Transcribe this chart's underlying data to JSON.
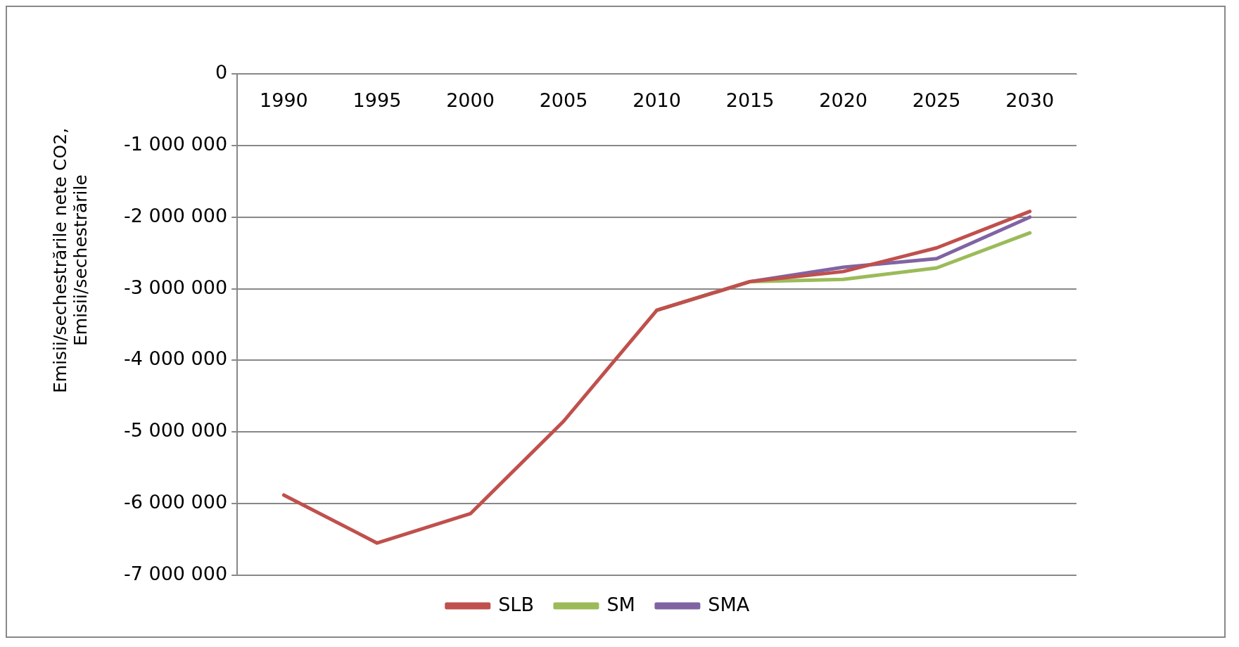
{
  "chart_data": {
    "type": "line",
    "ylabel": "Emisii/sechestrările nete CO2,",
    "annotations": [
      "Emisii/sechestrările"
    ],
    "categories": [
      "1990",
      "1995",
      "2000",
      "2005",
      "2010",
      "2015",
      "2020",
      "2025",
      "2030"
    ],
    "series": [
      {
        "name": "SLB",
        "color": "#c0504d",
        "values": [
          -5880000,
          -6550000,
          -6140000,
          -4850000,
          -3300000,
          -2900000,
          -2760000,
          -2430000,
          -1920000
        ]
      },
      {
        "name": "SM",
        "color": "#9bbb59",
        "values": [
          null,
          null,
          null,
          null,
          -3300000,
          -2900000,
          -2870000,
          -2710000,
          -2220000
        ]
      },
      {
        "name": "SMA",
        "color": "#8064a2",
        "values": [
          null,
          null,
          null,
          null,
          -3300000,
          -2900000,
          -2700000,
          -2580000,
          -2000000
        ]
      }
    ],
    "ylim": [
      -7000000,
      0
    ],
    "yticks": [
      {
        "value": -7000000,
        "label": "-7 000 000"
      },
      {
        "value": -6000000,
        "label": "-6 000 000"
      },
      {
        "value": -5000000,
        "label": "-5 000 000"
      },
      {
        "value": -4000000,
        "label": "-4 000 000"
      },
      {
        "value": -3000000,
        "label": "-3 000 000"
      },
      {
        "value": -2000000,
        "label": "-2 000 000"
      },
      {
        "value": -1000000,
        "label": "-1 000 000"
      },
      {
        "value": 0,
        "label": "0"
      }
    ],
    "grid": "y",
    "legend": "bottom",
    "marker": "none",
    "line_style": "solid"
  }
}
